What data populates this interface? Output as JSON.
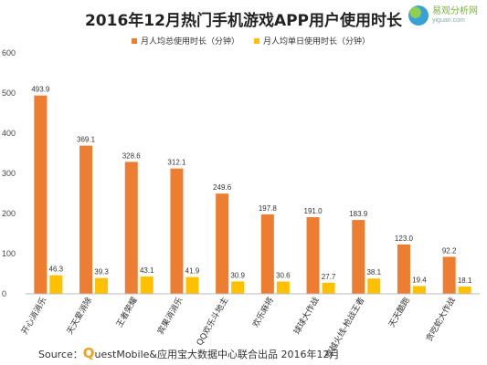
{
  "logo": {
    "cn": "易观分析网",
    "en": "yiguan.com"
  },
  "colors": {
    "orange": "#ED7D31",
    "yellow": "#FFC000"
  },
  "source": {
    "prefix": "Source：",
    "q": "Q",
    "rest": "uestMobile&应用宝大数据中心联合出品 2016年12月"
  },
  "chart_data": {
    "type": "bar",
    "title": "2016年12月热门手机游戏APP用户使用时长",
    "categories": [
      "开心消消乐",
      "天天爱消除",
      "王者荣耀",
      "宾果消消乐",
      "QQ欢乐斗地主",
      "欢乐麻将",
      "球球大作战",
      "穿越火线-枪战王者",
      "天天酷跑",
      "贪吃蛇大作战"
    ],
    "series": [
      {
        "name": "月人均总使用时长（分钟）",
        "values": [
          493.9,
          369.1,
          328.6,
          312.1,
          249.6,
          197.8,
          191.0,
          183.9,
          123.0,
          92.2
        ],
        "labels": [
          "493.9",
          "369.1",
          "328.6",
          "312.1",
          "249.6",
          "197.8",
          "191.0",
          "183.9",
          "123.0",
          "92.2"
        ]
      },
      {
        "name": "月人均单日使用时长（分钟）",
        "values": [
          46.3,
          39.3,
          43.1,
          41.9,
          30.9,
          30.6,
          27.7,
          38.1,
          19.4,
          18.1
        ],
        "labels": [
          "46.3",
          "39.3",
          "43.1",
          "41.9",
          "30.9",
          "30.6",
          "27.7",
          "38.1",
          "19.4",
          "18.1"
        ]
      }
    ],
    "ylim": [
      0,
      600
    ],
    "yticks": [
      0,
      100,
      200,
      300,
      400,
      500,
      600
    ],
    "grid": false,
    "legend_position": "top-right"
  }
}
